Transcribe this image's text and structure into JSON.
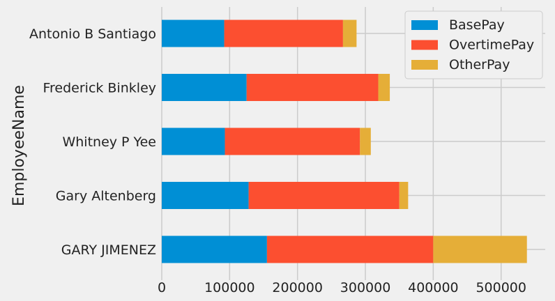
{
  "chart_data": {
    "type": "bar",
    "orientation": "horizontal",
    "stacked": true,
    "title": "",
    "xlabel": "",
    "ylabel": "EmployeeName",
    "categories": [
      "GARY JIMENEZ",
      "Gary Altenberg",
      "Whitney P Yee",
      "Frederick Binkley",
      "Antonio B Santiago"
    ],
    "series": [
      {
        "name": "BasePay",
        "color": "#008fd5",
        "values": [
          155000,
          128000,
          93000,
          125000,
          92000
        ]
      },
      {
        "name": "OvertimePay",
        "color": "#fc4f30",
        "values": [
          245000,
          222000,
          199000,
          194000,
          175000
        ]
      },
      {
        "name": "OtherPay",
        "color": "#e5ae38",
        "values": [
          138000,
          13000,
          16000,
          17000,
          20000
        ]
      }
    ],
    "xlim": [
      0,
      565000
    ],
    "xticks": [
      0,
      100000,
      200000,
      300000,
      400000,
      500000
    ],
    "grid": true,
    "legend_position": "top-right"
  }
}
